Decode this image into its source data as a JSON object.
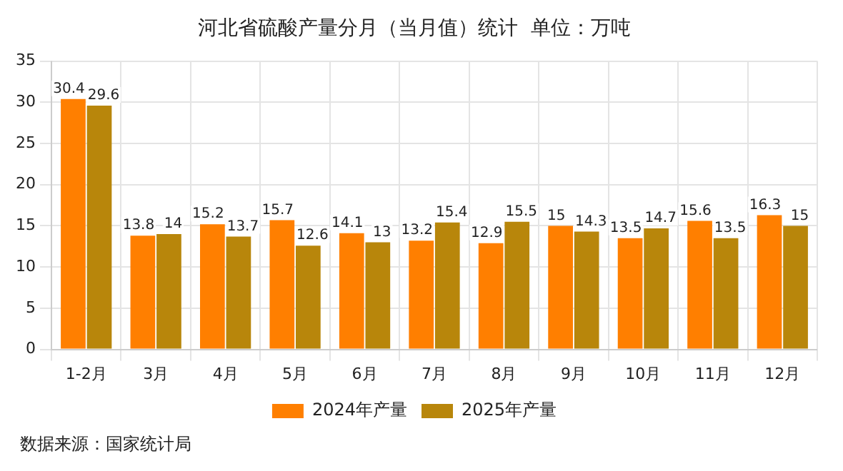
{
  "chart_data": {
    "type": "bar",
    "title": "河北省硫酸产量分月（当月值）统计  单位：万吨",
    "categories": [
      "1-2月",
      "3月",
      "4月",
      "5月",
      "6月",
      "7月",
      "8月",
      "9月",
      "10月",
      "11月",
      "12月"
    ],
    "series": [
      {
        "name": "2024年产量",
        "color": "#ff7f00",
        "values": [
          30.4,
          13.8,
          15.2,
          15.7,
          14.1,
          13.2,
          12.9,
          15,
          13.5,
          15.6,
          16.3
        ]
      },
      {
        "name": "2025年产量",
        "color": "#b8860b",
        "values": [
          29.6,
          14,
          13.7,
          12.6,
          13,
          15.4,
          15.5,
          14.3,
          14.7,
          13.5,
          15
        ]
      }
    ],
    "ylim": [
      0,
      35
    ],
    "yticks": [
      0,
      5,
      10,
      15,
      20,
      25,
      30,
      35
    ],
    "grid": true,
    "legend": "bottom",
    "data_labels": true,
    "annotations": [
      "数据来源：国家统计局"
    ]
  }
}
